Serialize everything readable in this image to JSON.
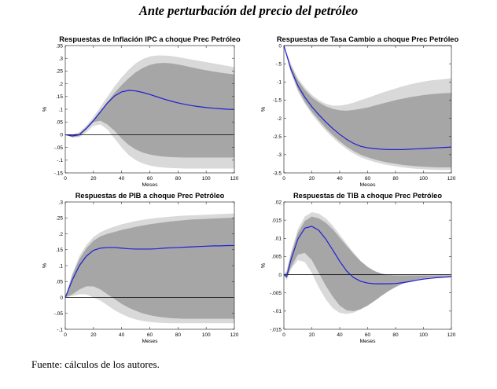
{
  "page": {
    "title": "Ante perturbación del precio del petróleo",
    "source_note": "Fuente: cálculos de los autores."
  },
  "chart_data": [
    {
      "type": "area",
      "title": "Respuestas de Inflación IPC a choque Prec Petróleo",
      "xlabel": "Meses",
      "ylabel": "%",
      "xlim": [
        0,
        120
      ],
      "ylim": [
        -0.15,
        0.35
      ],
      "xticks": [
        0,
        20,
        40,
        60,
        80,
        100,
        120
      ],
      "yticks": [
        -0.15,
        -0.1,
        -0.05,
        0,
        0.05,
        0.1,
        0.15,
        0.2,
        0.25,
        0.3,
        0.35
      ],
      "x": [
        0,
        5,
        10,
        15,
        20,
        25,
        30,
        35,
        40,
        45,
        50,
        55,
        60,
        65,
        70,
        75,
        80,
        85,
        90,
        95,
        100,
        105,
        110,
        115,
        120
      ],
      "series": [
        {
          "name": "band_outer_upper",
          "values": [
            0,
            0,
            0.01,
            0.035,
            0.07,
            0.11,
            0.15,
            0.19,
            0.225,
            0.255,
            0.28,
            0.297,
            0.307,
            0.311,
            0.311,
            0.309,
            0.305,
            0.3,
            0.295,
            0.29,
            0.285,
            0.28,
            0.275,
            0.27,
            0.265
          ]
        },
        {
          "name": "band_inner_upper",
          "values": [
            0,
            0,
            0.005,
            0.03,
            0.06,
            0.095,
            0.13,
            0.165,
            0.195,
            0.222,
            0.245,
            0.262,
            0.274,
            0.28,
            0.282,
            0.28,
            0.276,
            0.27,
            0.264,
            0.258,
            0.253,
            0.248,
            0.244,
            0.24,
            0.237
          ]
        },
        {
          "name": "impulse_response",
          "values": [
            0,
            -0.005,
            0,
            0.025,
            0.055,
            0.09,
            0.125,
            0.152,
            0.168,
            0.174,
            0.172,
            0.166,
            0.158,
            0.149,
            0.14,
            0.132,
            0.125,
            0.119,
            0.114,
            0.11,
            0.107,
            0.104,
            0.102,
            0.1,
            0.099
          ]
        },
        {
          "name": "band_inner_lower",
          "values": [
            0,
            -0.01,
            -0.005,
            0.02,
            0.05,
            0.055,
            0.04,
            0.015,
            -0.015,
            -0.04,
            -0.058,
            -0.07,
            -0.078,
            -0.083,
            -0.086,
            -0.088,
            -0.089,
            -0.09,
            -0.09,
            -0.09,
            -0.09,
            -0.09,
            -0.09,
            -0.09,
            -0.09
          ]
        },
        {
          "name": "band_outer_lower",
          "values": [
            0,
            -0.01,
            -0.01,
            0.01,
            0.035,
            0.04,
            0.02,
            -0.015,
            -0.05,
            -0.08,
            -0.1,
            -0.113,
            -0.121,
            -0.126,
            -0.129,
            -0.131,
            -0.132,
            -0.133,
            -0.133,
            -0.133,
            -0.133,
            -0.133,
            -0.133,
            -0.133,
            -0.133
          ]
        }
      ]
    },
    {
      "type": "area",
      "title": "Respuestas de Tasa Cambio a choque Prec Petróleo",
      "xlabel": "Meses",
      "ylabel": "%",
      "xlim": [
        0,
        120
      ],
      "ylim": [
        -3.5,
        0
      ],
      "xticks": [
        0,
        20,
        40,
        60,
        80,
        100,
        120
      ],
      "yticks": [
        -3.5,
        -3,
        -2.5,
        -2,
        -1.5,
        -1,
        -0.5,
        0
      ],
      "x": [
        0,
        5,
        10,
        15,
        20,
        25,
        30,
        35,
        40,
        45,
        50,
        55,
        60,
        65,
        70,
        75,
        80,
        85,
        90,
        95,
        100,
        105,
        110,
        115,
        120
      ],
      "series": [
        {
          "name": "band_outer_upper",
          "values": [
            0,
            -0.5,
            -0.9,
            -1.15,
            -1.35,
            -1.5,
            -1.6,
            -1.65,
            -1.65,
            -1.62,
            -1.57,
            -1.5,
            -1.44,
            -1.37,
            -1.3,
            -1.24,
            -1.18,
            -1.12,
            -1.07,
            -1.03,
            -0.99,
            -0.96,
            -0.94,
            -0.92,
            -0.9
          ]
        },
        {
          "name": "band_inner_upper",
          "values": [
            0,
            -0.55,
            -0.95,
            -1.22,
            -1.42,
            -1.56,
            -1.67,
            -1.74,
            -1.78,
            -1.79,
            -1.77,
            -1.74,
            -1.7,
            -1.65,
            -1.6,
            -1.55,
            -1.5,
            -1.46,
            -1.42,
            -1.39,
            -1.36,
            -1.34,
            -1.32,
            -1.31,
            -1.3
          ]
        },
        {
          "name": "impulse_response",
          "values": [
            0,
            -0.65,
            -1.1,
            -1.42,
            -1.68,
            -1.9,
            -2.1,
            -2.28,
            -2.44,
            -2.58,
            -2.69,
            -2.77,
            -2.81,
            -2.83,
            -2.85,
            -2.86,
            -2.86,
            -2.86,
            -2.85,
            -2.84,
            -2.83,
            -2.82,
            -2.81,
            -2.8,
            -2.79
          ]
        },
        {
          "name": "band_inner_lower",
          "values": [
            0,
            -0.7,
            -1.2,
            -1.55,
            -1.82,
            -2.05,
            -2.27,
            -2.46,
            -2.63,
            -2.78,
            -2.9,
            -3.0,
            -3.07,
            -3.13,
            -3.18,
            -3.22,
            -3.25,
            -3.28,
            -3.3,
            -3.32,
            -3.33,
            -3.34,
            -3.35,
            -3.35,
            -3.35
          ]
        },
        {
          "name": "band_outer_lower",
          "values": [
            0,
            -0.75,
            -1.25,
            -1.6,
            -1.88,
            -2.12,
            -2.34,
            -2.53,
            -2.7,
            -2.85,
            -2.97,
            -3.07,
            -3.14,
            -3.2,
            -3.25,
            -3.29,
            -3.32,
            -3.35,
            -3.37,
            -3.39,
            -3.4,
            -3.41,
            -3.42,
            -3.42,
            -3.42
          ]
        }
      ]
    },
    {
      "type": "area",
      "title": "Respuestas de PIB a choque Prec Petróleo",
      "xlabel": "Meses",
      "ylabel": "%",
      "xlim": [
        0,
        120
      ],
      "ylim": [
        -0.1,
        0.3
      ],
      "xticks": [
        0,
        20,
        40,
        60,
        80,
        100,
        120
      ],
      "yticks": [
        -0.1,
        -0.05,
        0,
        0.05,
        0.1,
        0.15,
        0.2,
        0.25,
        0.3
      ],
      "x": [
        0,
        5,
        10,
        15,
        20,
        25,
        30,
        35,
        40,
        45,
        50,
        55,
        60,
        65,
        70,
        75,
        80,
        85,
        90,
        95,
        100,
        105,
        110,
        115,
        120
      ],
      "series": [
        {
          "name": "band_outer_upper",
          "values": [
            0,
            0.075,
            0.13,
            0.165,
            0.19,
            0.205,
            0.215,
            0.223,
            0.23,
            0.235,
            0.24,
            0.244,
            0.247,
            0.25,
            0.252,
            0.254,
            0.256,
            0.257,
            0.258,
            0.259,
            0.26,
            0.261,
            0.262,
            0.263,
            0.264
          ]
        },
        {
          "name": "band_inner_upper",
          "values": [
            0,
            0.07,
            0.12,
            0.155,
            0.178,
            0.192,
            0.2,
            0.206,
            0.212,
            0.217,
            0.222,
            0.226,
            0.23,
            0.233,
            0.236,
            0.239,
            0.241,
            0.243,
            0.245,
            0.246,
            0.247,
            0.248,
            0.249,
            0.25,
            0.251
          ]
        },
        {
          "name": "impulse_response",
          "values": [
            0,
            0.055,
            0.1,
            0.13,
            0.148,
            0.155,
            0.157,
            0.157,
            0.155,
            0.153,
            0.152,
            0.152,
            0.152,
            0.153,
            0.155,
            0.156,
            0.157,
            0.158,
            0.159,
            0.16,
            0.161,
            0.162,
            0.162,
            0.163,
            0.163
          ]
        },
        {
          "name": "band_inner_lower",
          "values": [
            0,
            0.01,
            0.025,
            0.035,
            0.035,
            0.025,
            0.01,
            -0.005,
            -0.02,
            -0.032,
            -0.042,
            -0.05,
            -0.056,
            -0.06,
            -0.063,
            -0.065,
            -0.066,
            -0.067,
            -0.067,
            -0.067,
            -0.067,
            -0.067,
            -0.067,
            -0.067,
            -0.067
          ]
        },
        {
          "name": "band_outer_lower",
          "values": [
            0,
            0.005,
            0.01,
            0.01,
            0.0,
            -0.01,
            -0.025,
            -0.04,
            -0.052,
            -0.062,
            -0.069,
            -0.074,
            -0.077,
            -0.079,
            -0.08,
            -0.081,
            -0.081,
            -0.081,
            -0.081,
            -0.081,
            -0.081,
            -0.081,
            -0.081,
            -0.081,
            -0.081
          ]
        }
      ]
    },
    {
      "type": "area",
      "title": "Respuestas de TIB a choque Prec Petróleo",
      "xlabel": "Meses",
      "ylabel": "%",
      "xlim": [
        0,
        120
      ],
      "ylim": [
        -0.015,
        0.02
      ],
      "xticks": [
        0,
        20,
        40,
        60,
        80,
        100,
        120
      ],
      "yticks": [
        -0.015,
        -0.01,
        -0.005,
        0,
        0.005,
        0.01,
        0.015,
        0.02
      ],
      "x": [
        0,
        2,
        5,
        10,
        15,
        20,
        25,
        30,
        35,
        40,
        45,
        50,
        55,
        60,
        65,
        70,
        75,
        80,
        85,
        90,
        95,
        100,
        105,
        110,
        115,
        120
      ],
      "series": [
        {
          "name": "band_outer_upper",
          "values": [
            0,
            0.001,
            0.006,
            0.0125,
            0.016,
            0.0172,
            0.0168,
            0.0155,
            0.0135,
            0.011,
            0.0085,
            0.006,
            0.0038,
            0.0022,
            0.001,
            0.0003,
            0.0,
            0.0,
            0.0,
            0.0,
            0.0,
            0.0,
            0.0,
            0.0,
            0.0,
            0.0
          ]
        },
        {
          "name": "band_inner_upper",
          "values": [
            0,
            0.0008,
            0.0055,
            0.0115,
            0.0148,
            0.016,
            0.0155,
            0.0143,
            0.0125,
            0.0102,
            0.0079,
            0.0057,
            0.0037,
            0.0021,
            0.001,
            0.0003,
            -0.0001,
            -0.0002,
            -0.0002,
            -0.0002,
            -0.0002,
            -0.0002,
            -0.0002,
            -0.0002,
            -0.0002,
            -0.0002
          ]
        },
        {
          "name": "impulse_response",
          "values": [
            0,
            -0.0005,
            0.004,
            0.0098,
            0.0128,
            0.0133,
            0.0122,
            0.0098,
            0.0068,
            0.0037,
            0.001,
            -0.0008,
            -0.0018,
            -0.0023,
            -0.0025,
            -0.0025,
            -0.0025,
            -0.0024,
            -0.0022,
            -0.0019,
            -0.0015,
            -0.0012,
            -0.001,
            -0.0008,
            -0.0007,
            -0.0005
          ]
        },
        {
          "name": "band_inner_lower",
          "values": [
            0,
            -0.001,
            0.002,
            0.0055,
            0.006,
            0.004,
            0.0005,
            -0.003,
            -0.006,
            -0.0085,
            -0.0098,
            -0.01,
            -0.0095,
            -0.0085,
            -0.0072,
            -0.0058,
            -0.0045,
            -0.0034,
            -0.0025,
            -0.0018,
            -0.0013,
            -0.001,
            -0.0008,
            -0.0007,
            -0.0006,
            -0.0005
          ]
        },
        {
          "name": "band_outer_lower",
          "values": [
            0,
            -0.0015,
            0.0015,
            0.004,
            0.0035,
            0.0005,
            -0.0035,
            -0.0068,
            -0.0092,
            -0.0105,
            -0.0108,
            -0.0104,
            -0.0095,
            -0.0083,
            -0.0069,
            -0.0055,
            -0.0042,
            -0.0031,
            -0.0023,
            -0.0016,
            -0.0011,
            -0.0008,
            -0.0006,
            -0.0005,
            -0.0004,
            -0.0004
          ]
        }
      ]
    }
  ],
  "colors": {
    "outer_band": "#d9d9d9",
    "inner_band": "#a6a6a6",
    "response_line": "#1f1fd6",
    "zero_line": "#000000",
    "axis": "#333333"
  }
}
